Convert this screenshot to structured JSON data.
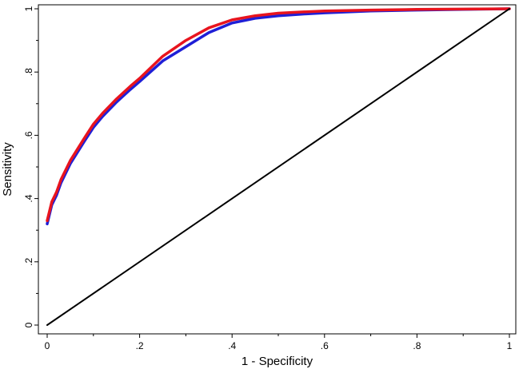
{
  "chart_data": {
    "type": "line",
    "title": "",
    "xlabel": "1 - Specificity",
    "ylabel": "Sensitivity",
    "xlim": [
      0,
      1
    ],
    "ylim": [
      0,
      1
    ],
    "grid": false,
    "legend": "none",
    "x_ticks": [
      {
        "value": 0,
        "label": "0"
      },
      {
        "value": 0.2,
        "label": ".2"
      },
      {
        "value": 0.4,
        "label": ".4"
      },
      {
        "value": 0.6,
        "label": ".6"
      },
      {
        "value": 0.8,
        "label": ".8"
      },
      {
        "value": 1,
        "label": "1"
      }
    ],
    "y_ticks": [
      {
        "value": 0,
        "label": "0"
      },
      {
        "value": 0.2,
        "label": ".2"
      },
      {
        "value": 0.4,
        "label": ".4"
      },
      {
        "value": 0.6,
        "label": ".6"
      },
      {
        "value": 0.8,
        "label": ".8"
      },
      {
        "value": 1,
        "label": "1"
      }
    ],
    "series": [
      {
        "color": "#1f1fd6",
        "x": [
          0,
          0.01,
          0.02,
          0.03,
          0.05,
          0.08,
          0.1,
          0.12,
          0.15,
          0.18,
          0.2,
          0.25,
          0.3,
          0.35,
          0.4,
          0.45,
          0.5,
          0.55,
          0.6,
          0.7,
          0.8,
          0.9,
          1.0
        ],
        "y": [
          0.32,
          0.38,
          0.41,
          0.45,
          0.51,
          0.58,
          0.625,
          0.66,
          0.705,
          0.745,
          0.77,
          0.835,
          0.88,
          0.925,
          0.955,
          0.97,
          0.978,
          0.983,
          0.987,
          0.993,
          0.996,
          0.998,
          1.0
        ]
      },
      {
        "color": "#e8141e",
        "x": [
          0,
          0.01,
          0.02,
          0.03,
          0.05,
          0.08,
          0.1,
          0.12,
          0.15,
          0.18,
          0.2,
          0.25,
          0.3,
          0.35,
          0.4,
          0.45,
          0.5,
          0.55,
          0.6,
          0.7,
          0.8,
          0.9,
          1.0
        ],
        "y": [
          0.33,
          0.39,
          0.42,
          0.46,
          0.52,
          0.59,
          0.635,
          0.67,
          0.715,
          0.755,
          0.78,
          0.85,
          0.9,
          0.94,
          0.965,
          0.978,
          0.986,
          0.99,
          0.993,
          0.996,
          0.998,
          0.999,
          1.0
        ]
      },
      {
        "color": "#000000",
        "x": [
          0,
          1
        ],
        "y": [
          0,
          1
        ]
      }
    ]
  }
}
